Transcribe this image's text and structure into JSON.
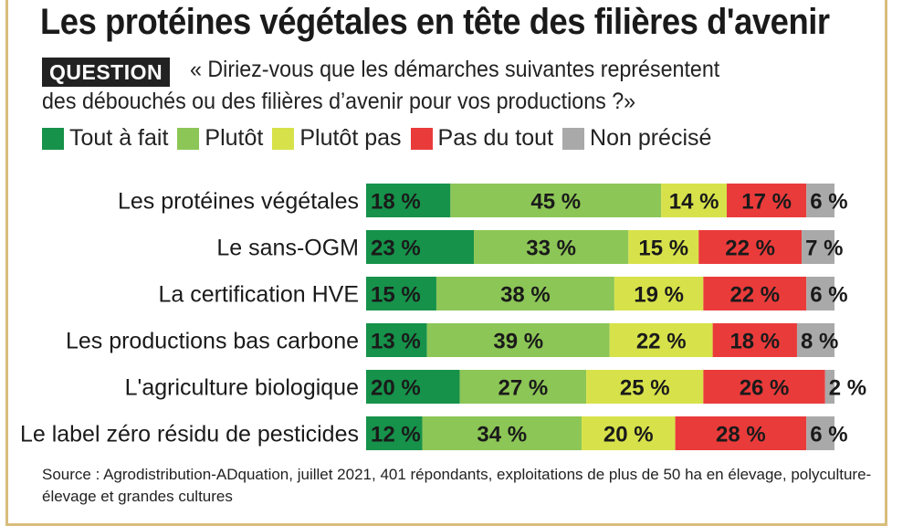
{
  "title": "Les protéines végétales en tête des filières d'avenir",
  "question": {
    "badge": "QUESTION",
    "line1": "« Diriez-vous que les démarches suivantes représentent",
    "line2": "des débouchés ou des filières d’avenir pour vos productions ?»"
  },
  "legend": [
    {
      "label": "Tout à fait",
      "color": "#16924a"
    },
    {
      "label": "Plutôt",
      "color": "#8cc656"
    },
    {
      "label": "Plutôt pas",
      "color": "#d7e24a"
    },
    {
      "label": "Pas du tout",
      "color": "#ea3b3b"
    },
    {
      "label": "Non précisé",
      "color": "#a9a9a9"
    }
  ],
  "chart_data": {
    "type": "bar",
    "orientation": "horizontal",
    "stacked": true,
    "unit": "%",
    "categories": [
      "Les protéines végétales",
      "Le sans-OGM",
      "La certification HVE",
      "Les productions bas carbone",
      "L'agriculture biologique",
      "Le label zéro résidu de pesticides"
    ],
    "series": [
      {
        "name": "Tout à fait",
        "color": "#16924a",
        "values": [
          18,
          23,
          15,
          13,
          20,
          12
        ]
      },
      {
        "name": "Plutôt",
        "color": "#8cc656",
        "values": [
          45,
          33,
          38,
          39,
          27,
          34
        ]
      },
      {
        "name": "Plutôt pas",
        "color": "#d7e24a",
        "values": [
          14,
          15,
          19,
          22,
          25,
          20
        ]
      },
      {
        "name": "Pas du tout",
        "color": "#ea3b3b",
        "values": [
          17,
          22,
          22,
          18,
          26,
          28
        ]
      },
      {
        "name": "Non précisé",
        "color": "#a9a9a9",
        "values": [
          6,
          7,
          6,
          8,
          2,
          6
        ]
      }
    ],
    "labels": [
      [
        "18 %",
        "45 %",
        "14 %",
        "17 %",
        "6 %"
      ],
      [
        "23 %",
        "33 %",
        "15 %",
        "22 %",
        "7 %"
      ],
      [
        "15 %",
        "38 %",
        "19 %",
        "22 %",
        "6 %"
      ],
      [
        "13 %",
        "39 %",
        "22 %",
        "18 %",
        "8 %"
      ],
      [
        "20 %",
        "27 %",
        "25 %",
        "26 %",
        "2 %"
      ],
      [
        "12 %",
        "34 %",
        "20 %",
        "28 %",
        "6 %"
      ]
    ]
  },
  "source": "Source : Agrodistribution-ADquation, juillet 2021, 401 répondants, exploitations de plus de 50 ha en élevage, polyculture-élevage et grandes cultures"
}
